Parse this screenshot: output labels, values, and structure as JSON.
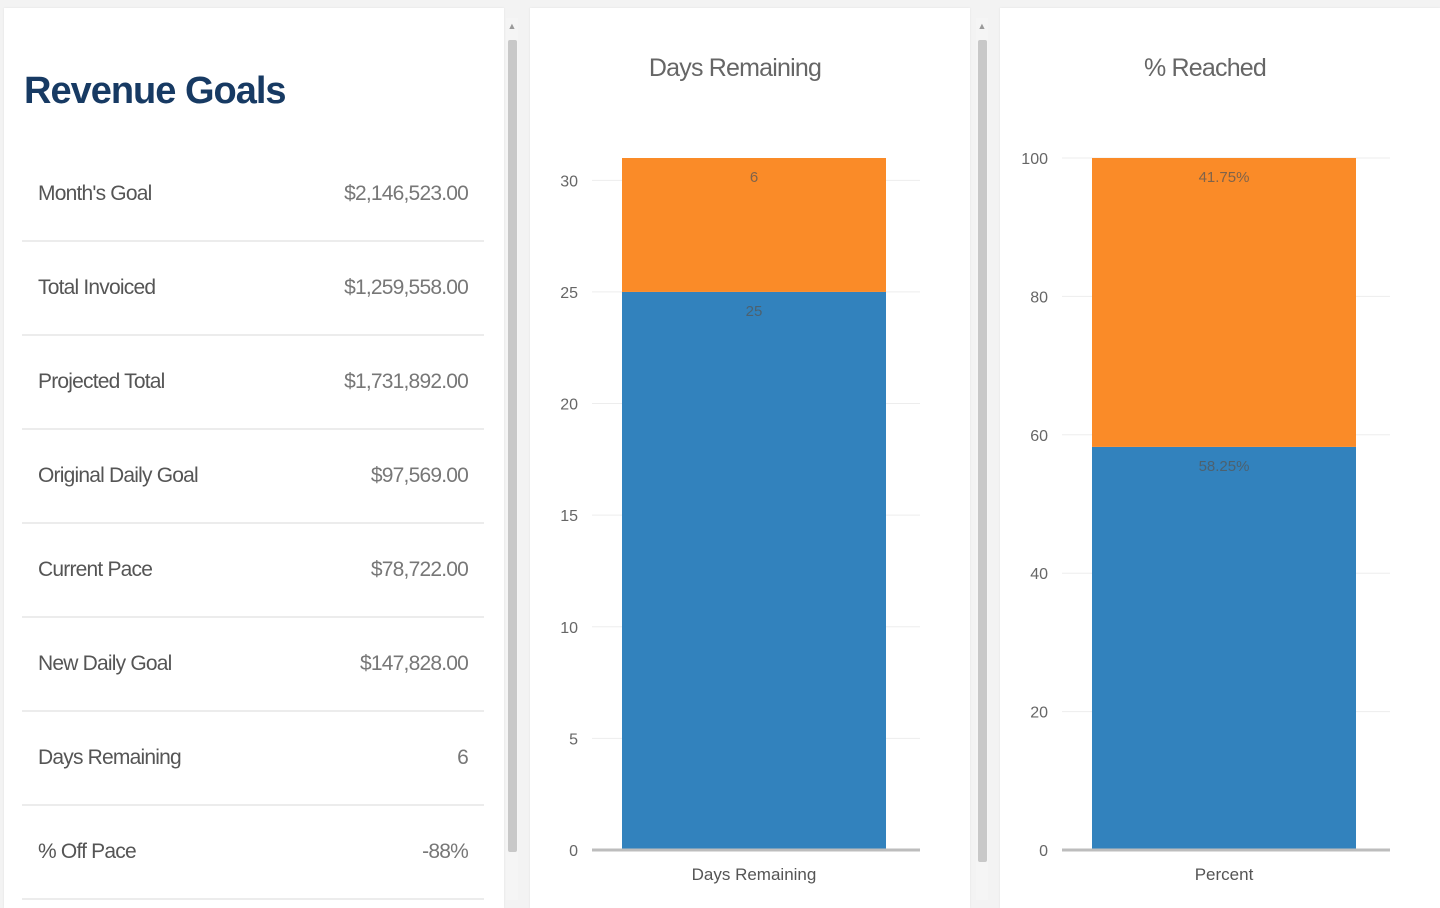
{
  "revenue_goals": {
    "title": "Revenue Goals",
    "rows": [
      {
        "label": "Month's Goal",
        "value": "$2,146,523.00"
      },
      {
        "label": "Total Invoiced",
        "value": "$1,259,558.00"
      },
      {
        "label": "Projected Total",
        "value": "$1,731,892.00"
      },
      {
        "label": "Original Daily Goal",
        "value": "$97,569.00"
      },
      {
        "label": "Current Pace",
        "value": "$78,722.00"
      },
      {
        "label": "New Daily Goal",
        "value": "$147,828.00"
      },
      {
        "label": "Days Remaining",
        "value": "6"
      },
      {
        "label": "% Off Pace",
        "value": "-88%"
      }
    ]
  },
  "colors": {
    "blue": "#3282bd",
    "orange": "#fa8b28",
    "title_navy": "#173a63"
  },
  "chart_data": [
    {
      "type": "bar",
      "stacked": true,
      "title": "Days Remaining",
      "categories": [
        "Days Remaining"
      ],
      "series": [
        {
          "values": [
            25
          ],
          "color": "#3282bd",
          "data_label": "25"
        },
        {
          "values": [
            6
          ],
          "color": "#fa8b28",
          "data_label": "6"
        }
      ],
      "ylim": [
        0,
        31
      ],
      "yticks": [
        0,
        5,
        10,
        15,
        20,
        25,
        30
      ],
      "grid": true,
      "legend": "none"
    },
    {
      "type": "bar",
      "stacked": true,
      "title": "% Reached",
      "categories": [
        "Percent"
      ],
      "series": [
        {
          "values": [
            58.25
          ],
          "color": "#3282bd",
          "data_label": "58.25%"
        },
        {
          "values": [
            41.75
          ],
          "color": "#fa8b28",
          "data_label": "41.75%"
        }
      ],
      "ylim": [
        0,
        100
      ],
      "yticks": [
        0,
        20,
        40,
        60,
        80,
        100
      ],
      "grid": true,
      "legend": "none"
    }
  ]
}
